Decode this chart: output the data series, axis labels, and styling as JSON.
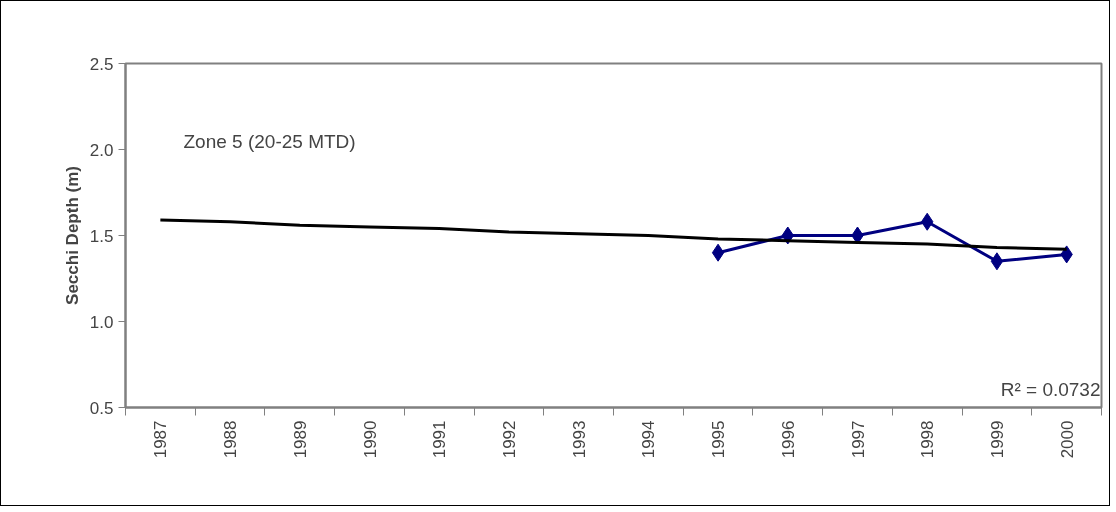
{
  "chart_data": {
    "type": "line",
    "ylabel": "Secchi Depth (m)",
    "categories": [
      "1987",
      "1988",
      "1989",
      "1990",
      "1991",
      "1992",
      "1993",
      "1994",
      "1995",
      "1996",
      "1997",
      "1998",
      "1999",
      "2000"
    ],
    "series": [
      {
        "color": "#000080",
        "marker": "diamond",
        "values": [
          null,
          null,
          null,
          null,
          null,
          null,
          null,
          null,
          1.4,
          1.5,
          1.5,
          1.58,
          1.35,
          1.39
        ]
      },
      {
        "type": "line",
        "color": "#000000",
        "marker": "none",
        "values": [
          1.59,
          1.58,
          1.56,
          1.55,
          1.54,
          1.52,
          1.51,
          1.5,
          1.48,
          1.47,
          1.46,
          1.45,
          1.43,
          1.42
        ]
      }
    ],
    "ylim": [
      0.5,
      2.5
    ],
    "yticks": [
      {
        "value": 0.5,
        "label": "0.5"
      },
      {
        "value": 1,
        "label": "1.0"
      },
      {
        "value": 1.5,
        "label": "1.5"
      },
      {
        "value": 2,
        "label": "2.0"
      },
      {
        "value": 2.5,
        "label": "2.5"
      }
    ],
    "grid": false,
    "annotations": [
      "Zone 5 (20-25 MTD)",
      "R² = 0.0732"
    ]
  }
}
